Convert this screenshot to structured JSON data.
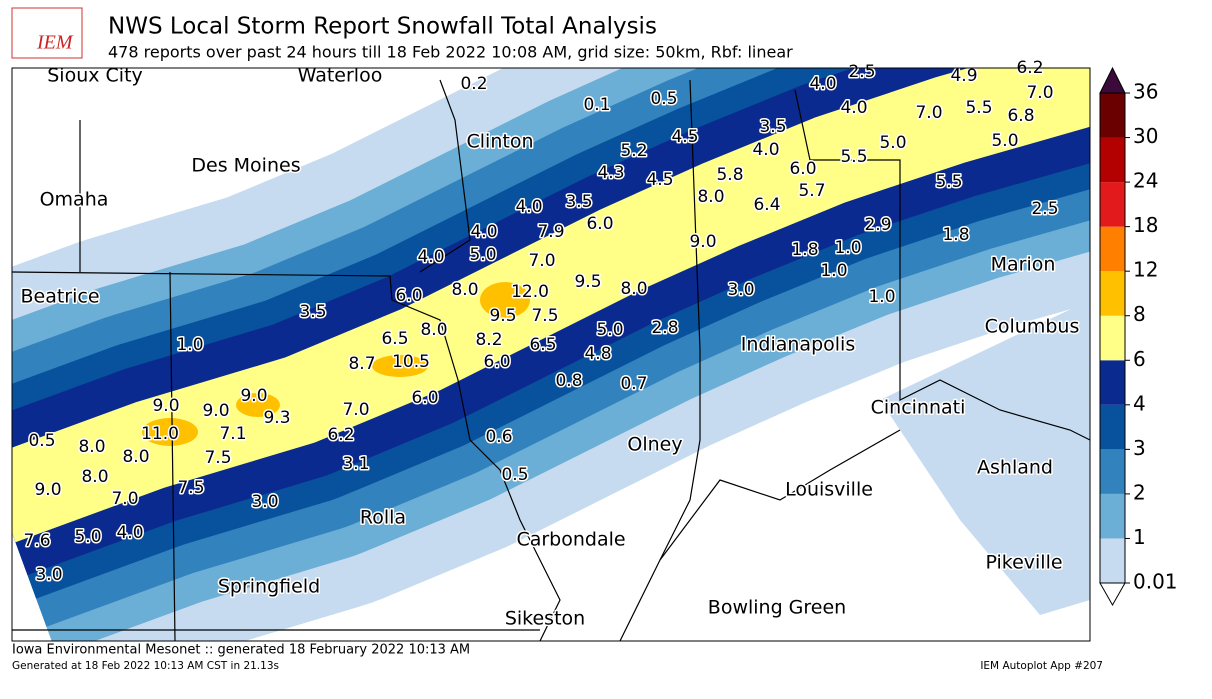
{
  "header": {
    "logo": "IEM",
    "title": "NWS Local Storm Report Snowfall Total Analysis",
    "subtitle": "478 reports over past 24 hours till 18 Feb 2022 10:08 AM, grid size: 50km, Rbf: linear"
  },
  "cities": [
    "Sioux City",
    "Waterloo",
    "Clinton",
    "Des Moines",
    "Omaha",
    "Beatrice",
    "Marion",
    "Columbus",
    "Indianapolis",
    "Cincinnati",
    "Olney",
    "Ashland",
    "Louisville",
    "Rolla",
    "Carbondale",
    "Pikeville",
    "Springfield",
    "Bowling Green",
    "Sikeston"
  ],
  "reports": [
    "0.2",
    "0.1",
    "0.5",
    "4.0",
    "2.5",
    "4.9",
    "6.2",
    "7.0",
    "4.0",
    "7.0",
    "5.5",
    "6.8",
    "4.5",
    "3.5",
    "5.2",
    "4.0",
    "5.0",
    "5.0",
    "4.3",
    "4.5",
    "5.8",
    "6.0",
    "5.5",
    "5.7",
    "5.5",
    "8.0",
    "6.4",
    "4.0",
    "3.5",
    "6.0",
    "2.5",
    "4.0",
    "7.9",
    "9.0",
    "2.9",
    "1.8",
    "5.0",
    "4.0",
    "7.0",
    "1.8",
    "1.0",
    "9.5",
    "1.0",
    "8.0",
    "12.0",
    "8.0",
    "3.0",
    "6.0",
    "1.0",
    "3.5",
    "9.5",
    "7.5",
    "6.5",
    "8.0",
    "5.0",
    "2.8",
    "8.2",
    "1.0",
    "6.5",
    "4.8",
    "8.7",
    "10.5",
    "6.0",
    "0.8",
    "0.7",
    "6.0",
    "9.0",
    "9.0",
    "9.0",
    "7.0",
    "9.3",
    "0.5",
    "11.0",
    "7.1",
    "6.2",
    "0.6",
    "8.0",
    "8.0",
    "7.5",
    "3.1",
    "0.5",
    "8.0",
    "9.0",
    "7.5",
    "7.0",
    "3.0",
    "5.0",
    "4.0",
    "7.6",
    "3.0"
  ],
  "colorbar": {
    "levels": [
      0.01,
      1,
      2,
      3,
      4,
      6,
      8,
      12,
      18,
      24,
      30,
      36
    ],
    "colors": [
      "#c6dbef",
      "#6baed6",
      "#3182bd",
      "#08519c",
      "#0a2a8f",
      "#ffff88",
      "#ffc000",
      "#ff8000",
      "#e31a1c",
      "#b30000",
      "#6b0000"
    ],
    "over_color": "#3b0a3b",
    "under_color": "#ffffff"
  },
  "footer": {
    "left": "Iowa Environmental Mesonet :: generated 18 February 2022 10:13 AM",
    "small": "Generated at 18 Feb 2022 10:13 AM CST in 21.13s",
    "right": "IEM Autoplot App #207"
  }
}
